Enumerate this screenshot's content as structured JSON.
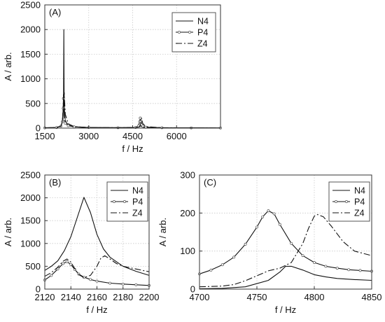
{
  "chart_data": [
    {
      "type": "line",
      "panel_label": "(A)",
      "xlabel": "f / Hz",
      "ylabel": "A / arb.",
      "xlim": [
        1500,
        7500
      ],
      "ylim": [
        0,
        2500
      ],
      "xticks": [
        1500,
        3000,
        4500,
        6000
      ],
      "yticks": [
        0,
        500,
        1000,
        1500,
        2000,
        2500
      ],
      "grid": "dotted",
      "legend": "top-right",
      "series": [
        {
          "name": "N4",
          "style": "solid",
          "x": [
            1500,
            1900,
            2050,
            2100,
            2130,
            2140,
            2145,
            2150,
            2155,
            2160,
            2170,
            2200,
            2300,
            2500,
            3000,
            4000,
            4600,
            4700,
            4750,
            4775,
            4800,
            4850,
            4950,
            5500,
            6500,
            7500
          ],
          "y": [
            5,
            12,
            40,
            120,
            400,
            700,
            1300,
            2000,
            1300,
            700,
            400,
            150,
            60,
            25,
            12,
            8,
            12,
            20,
            30,
            60,
            30,
            18,
            10,
            6,
            4,
            3
          ]
        },
        {
          "name": "P4",
          "style": "solid-markers",
          "x": [
            1500,
            1900,
            2050,
            2100,
            2130,
            2137,
            2145,
            2160,
            2200,
            2300,
            2500,
            3000,
            4000,
            4600,
            4700,
            4740,
            4760,
            4780,
            4800,
            4850,
            4950,
            5500,
            6500,
            7500
          ],
          "y": [
            5,
            12,
            40,
            130,
            400,
            600,
            420,
            180,
            100,
            50,
            25,
            12,
            8,
            14,
            45,
            130,
            205,
            130,
            70,
            40,
            18,
            8,
            5,
            3
          ]
        },
        {
          "name": "Z4",
          "style": "dash-dot",
          "x": [
            1500,
            1900,
            2050,
            2100,
            2130,
            2137,
            2145,
            2160,
            2165,
            2170,
            2200,
            2300,
            2500,
            3000,
            4000,
            4600,
            4700,
            4760,
            4790,
            4805,
            4820,
            4850,
            4950,
            5500,
            6500,
            7500
          ],
          "y": [
            5,
            12,
            40,
            130,
            450,
            680,
            300,
            650,
            720,
            620,
            280,
            90,
            30,
            12,
            8,
            14,
            20,
            50,
            120,
            200,
            150,
            90,
            30,
            8,
            5,
            3
          ]
        }
      ]
    },
    {
      "type": "line",
      "panel_label": "(B)",
      "xlabel": "f / Hz",
      "ylabel": "A / arb.",
      "xlim": [
        2120,
        2200
      ],
      "ylim": [
        0,
        2500
      ],
      "xticks": [
        2120,
        2140,
        2160,
        2180,
        2200
      ],
      "yticks": [
        0,
        500,
        1000,
        1500,
        2000,
        2500
      ],
      "grid": "dotted",
      "legend": "top-right",
      "series": [
        {
          "name": "N4",
          "style": "solid",
          "x": [
            2120,
            2125,
            2130,
            2135,
            2140,
            2145,
            2150,
            2155,
            2160,
            2165,
            2170,
            2180,
            2190,
            2200
          ],
          "y": [
            410,
            500,
            620,
            840,
            1150,
            1580,
            2010,
            1680,
            1200,
            880,
            700,
            500,
            390,
            300
          ]
        },
        {
          "name": "P4",
          "style": "solid-markers",
          "x": [
            2120,
            2125,
            2130,
            2134,
            2137,
            2140,
            2143,
            2146,
            2150,
            2155,
            2160,
            2170,
            2180,
            2190,
            2200
          ],
          "y": [
            200,
            300,
            440,
            560,
            600,
            540,
            430,
            330,
            260,
            210,
            175,
            130,
            110,
            95,
            80
          ]
        },
        {
          "name": "Z4",
          "style": "dash-dot",
          "x": [
            2120,
            2125,
            2130,
            2134,
            2137,
            2140,
            2143,
            2146,
            2150,
            2155,
            2160,
            2163,
            2166,
            2170,
            2175,
            2180,
            2190,
            2200
          ],
          "y": [
            280,
            360,
            480,
            610,
            660,
            590,
            450,
            320,
            250,
            300,
            500,
            680,
            730,
            660,
            560,
            500,
            440,
            380
          ]
        }
      ]
    },
    {
      "type": "line",
      "panel_label": "(C)",
      "xlabel": "f / Hz",
      "ylabel": "A / arb.",
      "xlim": [
        4700,
        4850
      ],
      "ylim": [
        0,
        300
      ],
      "xticks": [
        4700,
        4750,
        4800,
        4850
      ],
      "yticks": [
        0,
        100,
        200,
        300
      ],
      "grid": "dotted",
      "legend": "top-right",
      "series": [
        {
          "name": "N4",
          "style": "solid",
          "x": [
            4700,
            4720,
            4740,
            4760,
            4770,
            4775,
            4780,
            4790,
            4800,
            4810,
            4820,
            4835,
            4850
          ],
          "y": [
            1,
            2,
            6,
            23,
            45,
            60,
            60,
            50,
            38,
            32,
            28,
            25,
            23
          ]
        },
        {
          "name": "P4",
          "style": "solid-markers",
          "x": [
            4700,
            4710,
            4720,
            4730,
            4740,
            4750,
            4755,
            4760,
            4765,
            4770,
            4780,
            4790,
            4800,
            4810,
            4820,
            4830,
            4840,
            4850
          ],
          "y": [
            40,
            50,
            64,
            84,
            118,
            163,
            190,
            206,
            198,
            170,
            120,
            88,
            70,
            60,
            55,
            51,
            49,
            47
          ]
        },
        {
          "name": "Z4",
          "style": "dash-dot",
          "x": [
            4700,
            4720,
            4730,
            4740,
            4750,
            4760,
            4770,
            4780,
            4790,
            4795,
            4800,
            4803,
            4808,
            4815,
            4825,
            4835,
            4850
          ],
          "y": [
            6,
            8,
            12,
            22,
            35,
            48,
            55,
            70,
            120,
            160,
            192,
            196,
            190,
            165,
            125,
            100,
            88
          ]
        }
      ]
    }
  ]
}
